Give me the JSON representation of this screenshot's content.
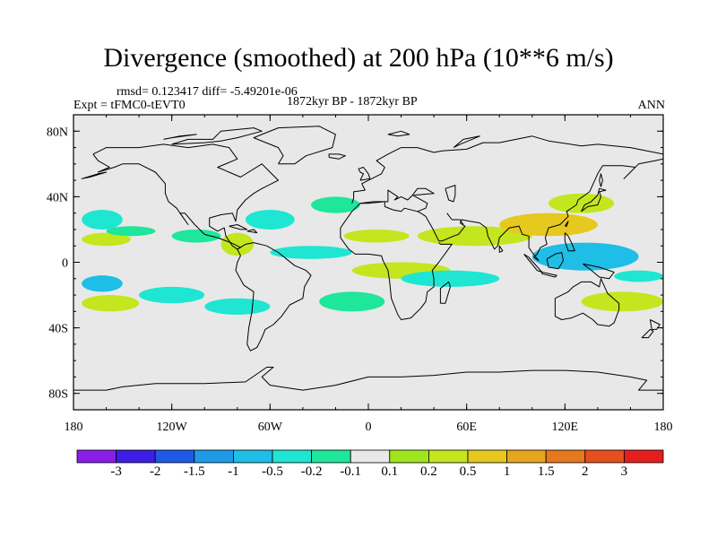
{
  "title": "Divergence (smoothed) at 200 hPa (10**6 m/s)",
  "stats": "rmsd= 0.123417 diff= -5.49201e-06",
  "expt": "Expt = tFMC0-tEVT0",
  "period": "1872kyr BP - 1872kyr BP",
  "season": "ANN",
  "lat_ticks": [
    {
      "value": 80,
      "label": "80N"
    },
    {
      "value": 40,
      "label": "40N"
    },
    {
      "value": 0,
      "label": "0"
    },
    {
      "value": -40,
      "label": "40S"
    },
    {
      "value": -80,
      "label": "80S"
    }
  ],
  "lon_ticks": [
    {
      "value": -180,
      "label": "180"
    },
    {
      "value": -120,
      "label": "120W"
    },
    {
      "value": -60,
      "label": "60W"
    },
    {
      "value": 0,
      "label": "0"
    },
    {
      "value": 60,
      "label": "60E"
    },
    {
      "value": 120,
      "label": "120E"
    },
    {
      "value": 180,
      "label": "180"
    }
  ],
  "colorbar": {
    "colors": [
      "#8a1ee6",
      "#3c1ee6",
      "#1e5ae6",
      "#1e9be6",
      "#1ebee6",
      "#1ee6d2",
      "#1ee69b",
      "#e8e8e8",
      "#a0e61e",
      "#c3e61e",
      "#e6c81e",
      "#e6a51e",
      "#e6781e",
      "#e6501e",
      "#e61e1e"
    ],
    "labels": [
      "-3",
      "-2",
      "-1.5",
      "-1",
      "-0.5",
      "-0.2",
      "-0.1",
      "0.1",
      "0.2",
      "0.5",
      "1",
      "1.5",
      "2",
      "3"
    ]
  },
  "chart_data": {
    "type": "heatmap",
    "title": "Divergence (smoothed) at 200 hPa (10**6 m/s)",
    "xlabel": "",
    "ylabel": "",
    "xlim": [
      -180,
      180
    ],
    "ylim": [
      -90,
      90
    ],
    "levels": [
      -3,
      -2,
      -1.5,
      -1,
      -0.5,
      -0.2,
      -0.1,
      0.1,
      0.2,
      0.5,
      1,
      1.5,
      2,
      3
    ],
    "anomaly_regions": [
      {
        "lon": [
          -175,
          -150
        ],
        "lat": [
          20,
          32
        ],
        "category": "-0.2"
      },
      {
        "lon": [
          -175,
          -145
        ],
        "lat": [
          10,
          18
        ],
        "category": "0.2"
      },
      {
        "lon": [
          -160,
          -130
        ],
        "lat": [
          16,
          22
        ],
        "category": "-0.1"
      },
      {
        "lon": [
          -120,
          -90
        ],
        "lat": [
          12,
          20
        ],
        "category": "-0.1"
      },
      {
        "lon": [
          -75,
          -45
        ],
        "lat": [
          20,
          32
        ],
        "category": "-0.2"
      },
      {
        "lon": [
          -35,
          -5
        ],
        "lat": [
          30,
          40
        ],
        "category": "-0.1"
      },
      {
        "lon": [
          -90,
          -70
        ],
        "lat": [
          4,
          18
        ],
        "category": "0.2"
      },
      {
        "lon": [
          -60,
          -10
        ],
        "lat": [
          2,
          10
        ],
        "category": "-0.2"
      },
      {
        "lon": [
          -15,
          25
        ],
        "lat": [
          12,
          20
        ],
        "category": "0.2"
      },
      {
        "lon": [
          30,
          100
        ],
        "lat": [
          10,
          22
        ],
        "category": "0.2"
      },
      {
        "lon": [
          80,
          140
        ],
        "lat": [
          16,
          30
        ],
        "category": "0.5"
      },
      {
        "lon": [
          110,
          150
        ],
        "lat": [
          30,
          42
        ],
        "category": "0.2"
      },
      {
        "lon": [
          100,
          165
        ],
        "lat": [
          -5,
          12
        ],
        "category": "-0.5"
      },
      {
        "lon": [
          -10,
          50
        ],
        "lat": [
          -10,
          0
        ],
        "category": "0.2"
      },
      {
        "lon": [
          20,
          80
        ],
        "lat": [
          -15,
          -5
        ],
        "category": "-0.2"
      },
      {
        "lon": [
          -175,
          -150
        ],
        "lat": [
          -18,
          -8
        ],
        "category": "-0.5"
      },
      {
        "lon": [
          -175,
          -140
        ],
        "lat": [
          -30,
          -20
        ],
        "category": "0.2"
      },
      {
        "lon": [
          -140,
          -100
        ],
        "lat": [
          -25,
          -15
        ],
        "category": "-0.2"
      },
      {
        "lon": [
          -100,
          -60
        ],
        "lat": [
          -32,
          -22
        ],
        "category": "-0.2"
      },
      {
        "lon": [
          -30,
          10
        ],
        "lat": [
          -30,
          -18
        ],
        "category": "-0.1"
      },
      {
        "lon": [
          130,
          180
        ],
        "lat": [
          -30,
          -18
        ],
        "category": "0.2"
      },
      {
        "lon": [
          150,
          180
        ],
        "lat": [
          -12,
          -5
        ],
        "category": "-0.2"
      }
    ]
  }
}
